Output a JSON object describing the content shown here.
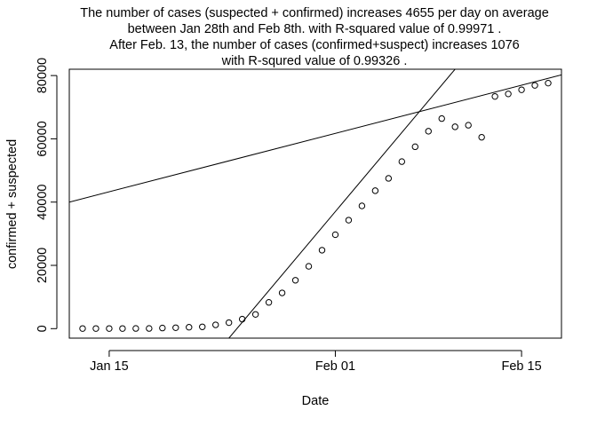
{
  "chart_data": {
    "type": "scatter",
    "title": [
      "The number of cases (suspected + confirmed) increases 4655 per day on average",
      "between Jan 28th and Feb 8th. with R-squared value of  0.99971 .",
      "After Feb. 13, the number of cases (confirmed+suspect) increases  1076",
      "with R-squred value of 0.99326 ."
    ],
    "xlabel": "Date",
    "ylabel": "confirmed + suspected",
    "x_ticks": [
      {
        "date": "2020-01-15",
        "label": "Jan 15"
      },
      {
        "date": "2020-02-01",
        "label": "Feb 01"
      },
      {
        "date": "2020-02-15",
        "label": "Feb 15"
      }
    ],
    "y_ticks": [
      0,
      20000,
      40000,
      60000,
      80000
    ],
    "xlim": [
      "2020-01-12",
      "2020-02-18"
    ],
    "ylim": [
      -3000,
      82000
    ],
    "grid": false,
    "series": [
      {
        "style": "points",
        "x": [
          "2020-01-13",
          "2020-01-14",
          "2020-01-15",
          "2020-01-16",
          "2020-01-17",
          "2020-01-18",
          "2020-01-19",
          "2020-01-20",
          "2020-01-21",
          "2020-01-22",
          "2020-01-23",
          "2020-01-24",
          "2020-01-25",
          "2020-01-26",
          "2020-01-27",
          "2020-01-28",
          "2020-01-29",
          "2020-01-30",
          "2020-01-31",
          "2020-02-01",
          "2020-02-02",
          "2020-02-03",
          "2020-02-04",
          "2020-02-05",
          "2020-02-06",
          "2020-02-07",
          "2020-02-08",
          "2020-02-09",
          "2020-02-10",
          "2020-02-11",
          "2020-02-12",
          "2020-02-13",
          "2020-02-14",
          "2020-02-15",
          "2020-02-16",
          "2020-02-17"
        ],
        "y": [
          41,
          41,
          41,
          41,
          62,
          62,
          201,
          291,
          440,
          571,
          1200,
          1900,
          3000,
          4500,
          8300,
          11300,
          15300,
          19700,
          24800,
          29700,
          34300,
          38800,
          43600,
          47500,
          52800,
          57500,
          62400,
          66400,
          63800,
          64300,
          60500,
          73400,
          74200,
          75500,
          76900,
          77600
        ]
      },
      {
        "style": "line",
        "note": "fit Jan 28 - Feb 8",
        "x": [
          "2020-01-24",
          "2020-02-10"
        ],
        "y": [
          -3000,
          82000
        ]
      },
      {
        "style": "line",
        "note": "fit after Feb 13",
        "x": [
          "2020-01-12",
          "2020-02-18"
        ],
        "y": [
          40000,
          80200
        ]
      }
    ]
  }
}
